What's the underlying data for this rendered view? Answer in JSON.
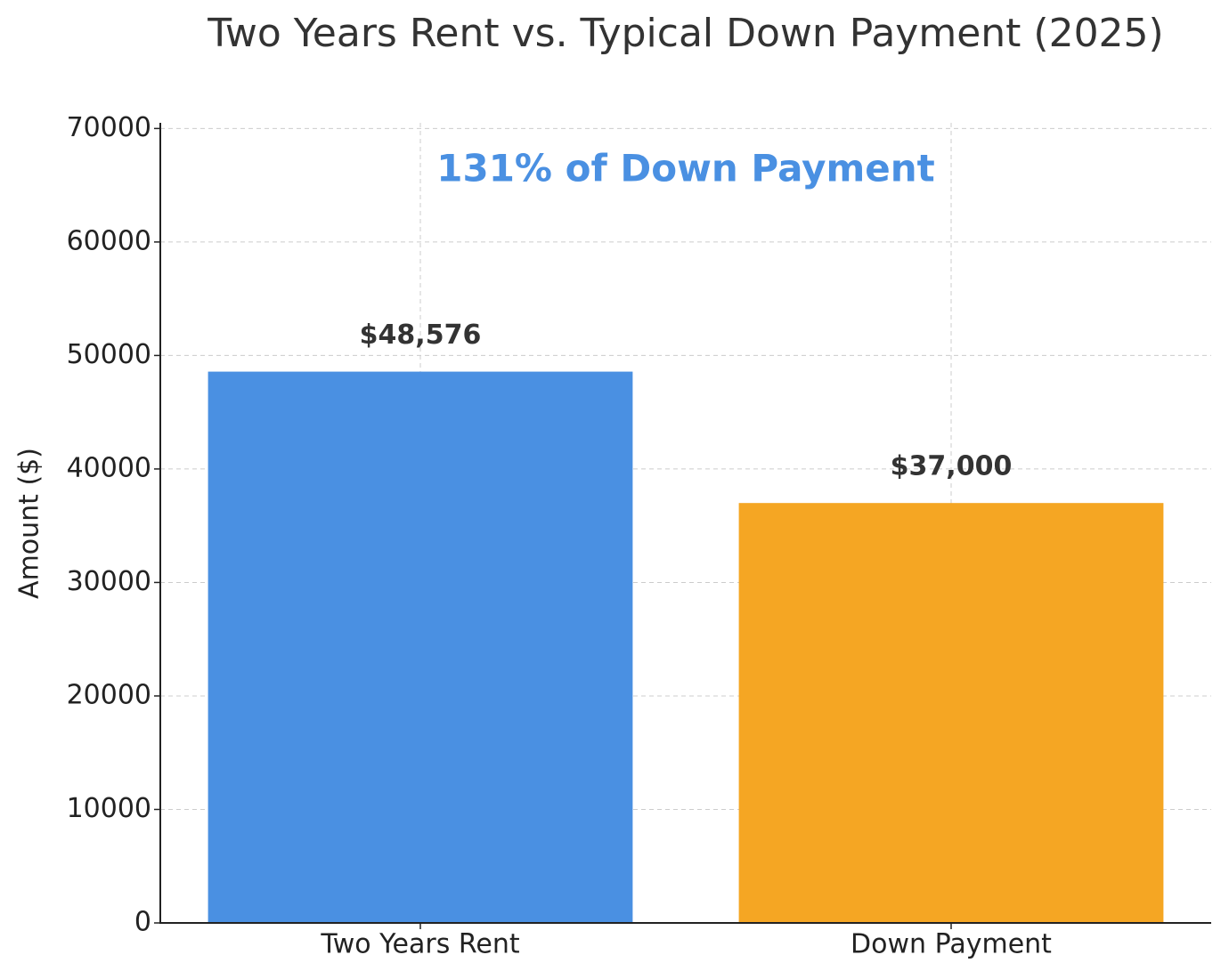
{
  "chart_data": {
    "type": "bar",
    "title": "Two Years Rent vs. Typical Down Payment (2025)",
    "ylabel": "Amount ($)",
    "annotation": "131% of Down Payment",
    "annotation_color": "#4a90e2",
    "categories": [
      "Two Years Rent",
      "Down Payment"
    ],
    "values": [
      48576,
      37000
    ],
    "value_labels": [
      "$48,576",
      "$37,000"
    ],
    "colors": [
      "#4a90e2",
      "#f5a623"
    ],
    "ylim": [
      0,
      70500
    ],
    "yticks": [
      0,
      10000,
      20000,
      30000,
      40000,
      50000,
      60000,
      70000
    ],
    "grid": true
  }
}
